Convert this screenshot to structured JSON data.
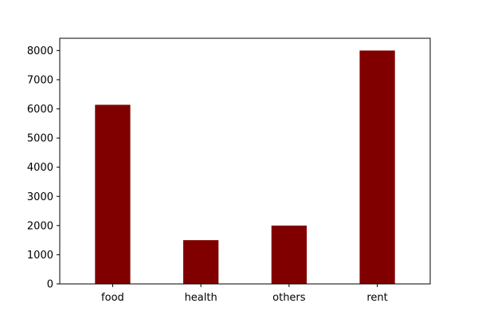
{
  "chart_data": {
    "type": "bar",
    "title": "",
    "xlabel": "",
    "ylabel": "",
    "categories": [
      "food",
      "health",
      "others",
      "rent"
    ],
    "values": [
      6140,
      1500,
      2000,
      8000
    ],
    "ylim": [
      0,
      8420
    ],
    "yticks": [
      0,
      1000,
      2000,
      3000,
      4000,
      5000,
      6000,
      7000,
      8000
    ],
    "grid": false,
    "legend": "none",
    "bar_color": "#800000"
  }
}
